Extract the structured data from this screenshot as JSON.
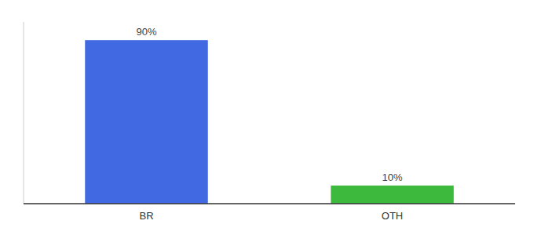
{
  "chart_data": {
    "type": "bar",
    "categories": [
      "BR",
      "OTH"
    ],
    "values": [
      90,
      10
    ],
    "value_labels": [
      "90%",
      "10%"
    ],
    "data_labels": true,
    "colors": [
      "#4169e1",
      "#3dba3d"
    ],
    "ylim": [
      0,
      100
    ],
    "tick_labels": "x"
  }
}
